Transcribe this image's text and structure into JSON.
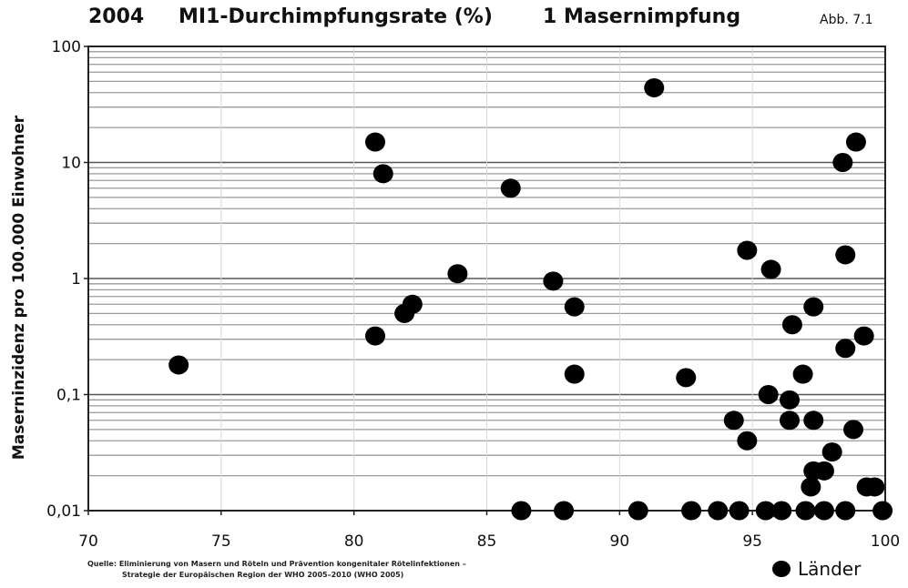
{
  "header": {
    "year": "2004",
    "title": "MI1-Durchimpfungsrate (%)",
    "subtitle": "1 Masernimpfung",
    "figure_label": "Abb. 7.1"
  },
  "source": {
    "line1": "Quelle: Eliminierung von Masern und Röteln und Prävention kongenitaler Rötelinfektionen –",
    "line2": "Strategie der Europäischen Region der WHO 2005–2010 (WHO 2005)"
  },
  "legend": {
    "label": "Länder"
  },
  "chart_data": {
    "type": "scatter",
    "title": "MI1-Durchimpfungsrate (%)",
    "xlabel": "",
    "ylabel": "Maserninzidenz pro 100.000 Einwohner",
    "xlim": [
      70,
      100
    ],
    "ylim": [
      0.01,
      100
    ],
    "yscale": "log",
    "grid": true,
    "legend_position": "bottom-right",
    "point_color": "#000000",
    "x_ticks": [
      70,
      75,
      80,
      85,
      90,
      95,
      100
    ],
    "x_tick_labels": [
      "70",
      "75",
      "80",
      "85",
      "90",
      "95",
      "100"
    ],
    "y_ticks": [
      0.01,
      0.1,
      1,
      10,
      100
    ],
    "y_tick_labels": [
      "0,01",
      "0,1",
      "1",
      "10",
      "100"
    ],
    "series": [
      {
        "name": "Länder",
        "points": [
          [
            73.4,
            0.18
          ],
          [
            80.8,
            15
          ],
          [
            81.1,
            8
          ],
          [
            80.8,
            0.32
          ],
          [
            81.9,
            0.5
          ],
          [
            82.2,
            0.6
          ],
          [
            83.9,
            1.1
          ],
          [
            85.9,
            6
          ],
          [
            87.5,
            0.95
          ],
          [
            88.3,
            0.57
          ],
          [
            88.3,
            0.15
          ],
          [
            86.3,
            0.01
          ],
          [
            87.9,
            0.01
          ],
          [
            91.3,
            44
          ],
          [
            90.7,
            0.01
          ],
          [
            92.5,
            0.14
          ],
          [
            92.7,
            0.01
          ],
          [
            93.7,
            0.01
          ],
          [
            94.3,
            0.06
          ],
          [
            94.5,
            0.01
          ],
          [
            94.8,
            1.75
          ],
          [
            94.8,
            0.04
          ],
          [
            95.5,
            0.01
          ],
          [
            95.6,
            0.1
          ],
          [
            95.7,
            1.2
          ],
          [
            96.1,
            0.01
          ],
          [
            96.4,
            0.09
          ],
          [
            96.4,
            0.06
          ],
          [
            96.5,
            0.4
          ],
          [
            96.9,
            0.15
          ],
          [
            97.0,
            0.01
          ],
          [
            97.2,
            0.016
          ],
          [
            97.3,
            0.022
          ],
          [
            97.3,
            0.06
          ],
          [
            97.3,
            0.57
          ],
          [
            97.7,
            0.022
          ],
          [
            97.7,
            0.01
          ],
          [
            98.0,
            0.032
          ],
          [
            98.4,
            10
          ],
          [
            98.5,
            1.6
          ],
          [
            98.5,
            0.25
          ],
          [
            98.5,
            0.01
          ],
          [
            98.8,
            0.05
          ],
          [
            98.9,
            15
          ],
          [
            99.2,
            0.32
          ],
          [
            99.3,
            0.016
          ],
          [
            99.6,
            0.016
          ],
          [
            99.9,
            0.01
          ]
        ]
      }
    ]
  }
}
